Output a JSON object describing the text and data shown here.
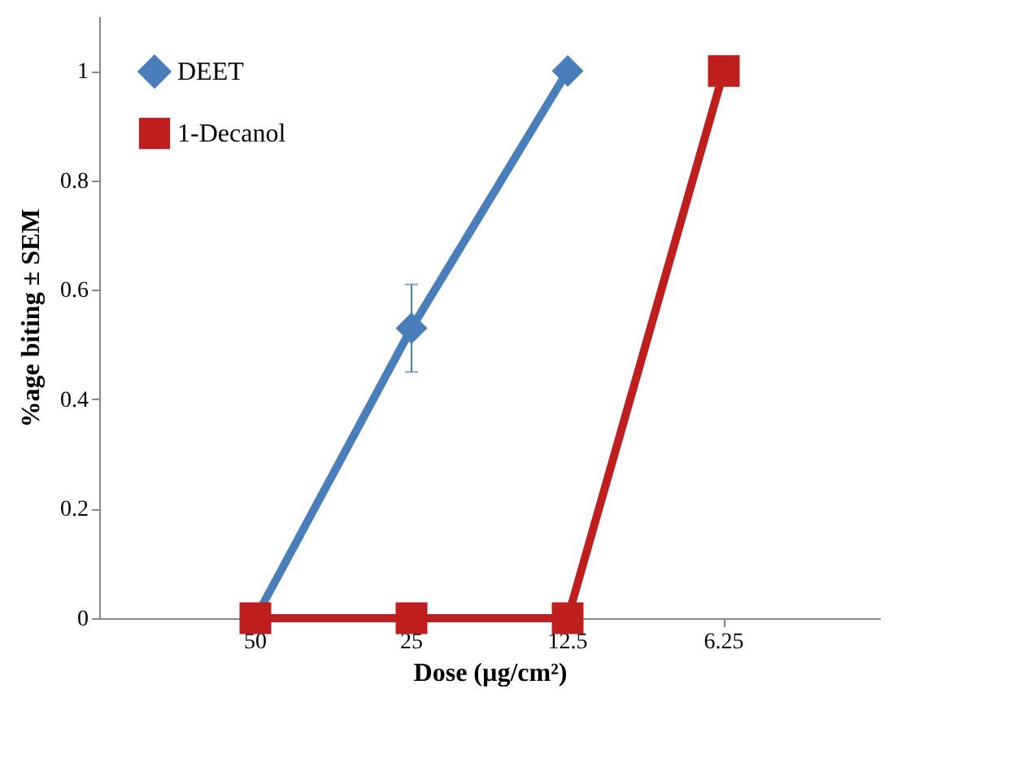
{
  "chart_data": {
    "type": "line",
    "xlabel": "Dose (µg/cm²)",
    "ylabel": "%age biting ± SEM",
    "categories": [
      "50",
      "25",
      "12.5",
      "6.25"
    ],
    "ylim": [
      0,
      1.1
    ],
    "yticks": [
      0,
      0.2,
      0.4,
      0.6,
      0.8,
      1
    ],
    "grid": false,
    "legend": "top left",
    "series": [
      {
        "name": "DEET",
        "color": "#4a7ebb",
        "marker": "diamond",
        "values": [
          0,
          0.53,
          1,
          null
        ],
        "errors": [
          null,
          0.08,
          null,
          null
        ]
      },
      {
        "name": "1-Decanol",
        "color": "#be1e1e",
        "marker": "square",
        "values": [
          0,
          0,
          0,
          1
        ]
      }
    ]
  }
}
